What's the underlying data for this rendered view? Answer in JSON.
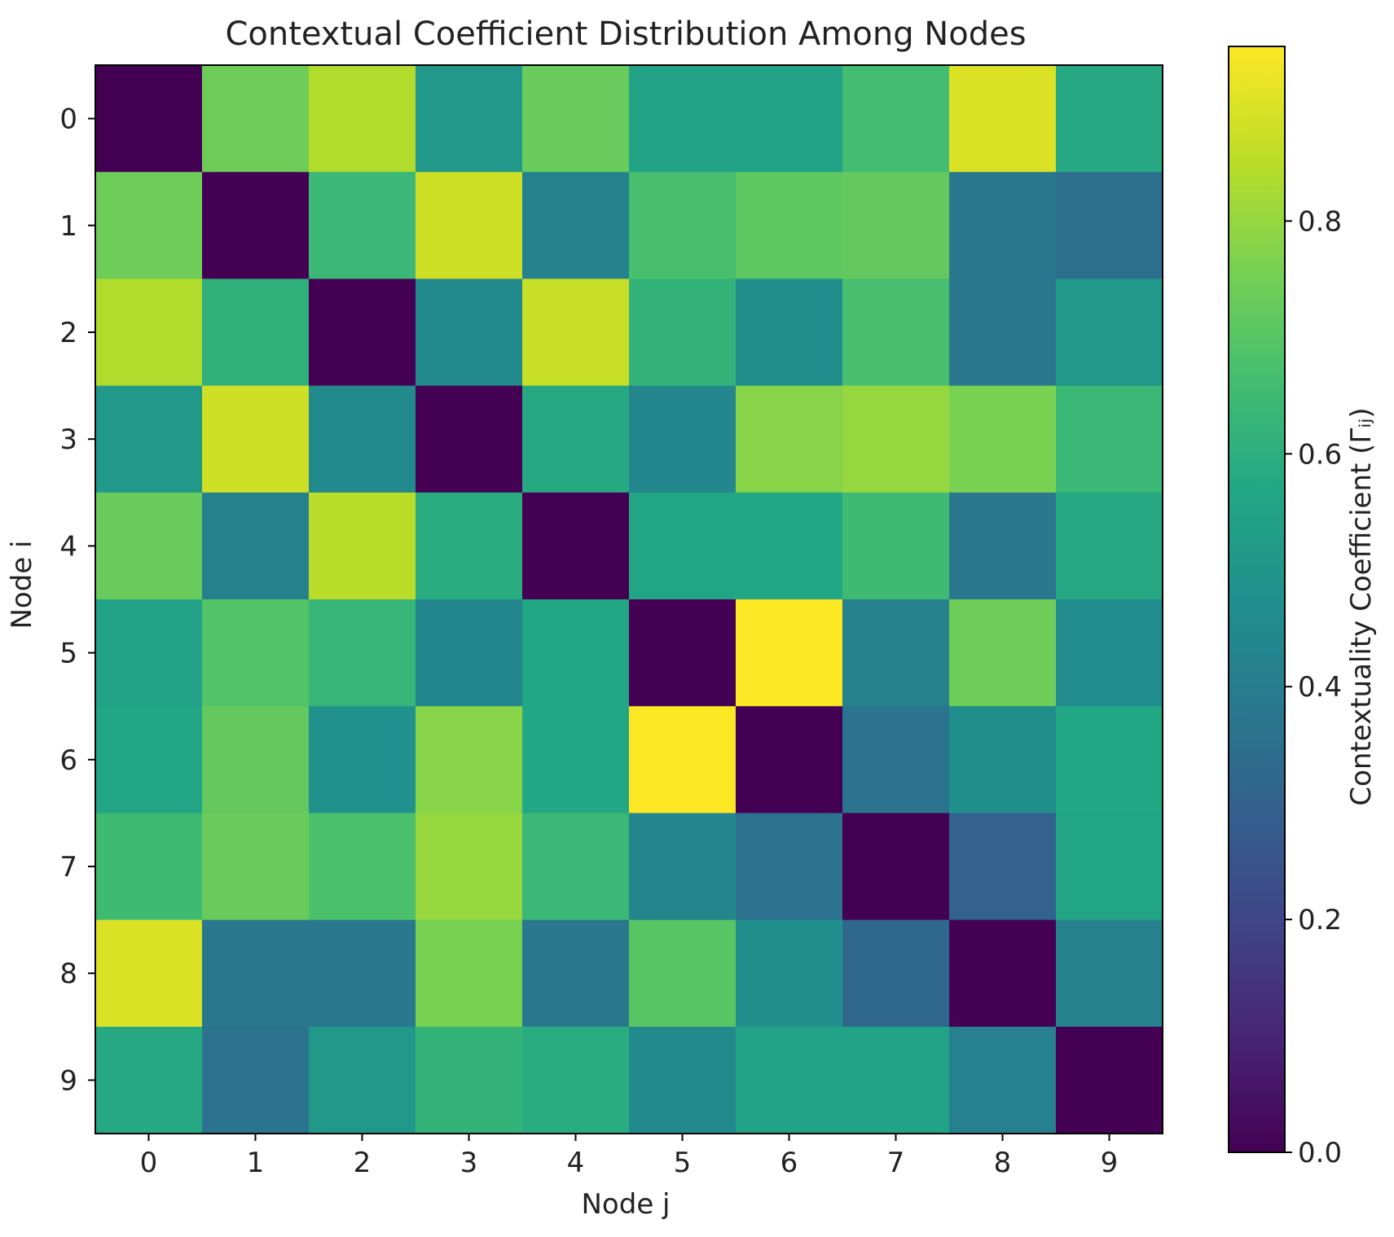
{
  "chart_data": {
    "type": "heatmap",
    "title": "Contextual Coefficient Distribution Among Nodes",
    "xlabel": "Node j",
    "ylabel": "Node i",
    "x_ticks": [
      "0",
      "1",
      "2",
      "3",
      "4",
      "5",
      "6",
      "7",
      "8",
      "9"
    ],
    "y_ticks": [
      "0",
      "1",
      "2",
      "3",
      "4",
      "5",
      "6",
      "7",
      "8",
      "9"
    ],
    "colormap": "viridis",
    "colorbar": {
      "label": "Contextuality Coefficient (Γᵢⱼ)",
      "range": [
        0.0,
        0.95
      ],
      "ticks": [
        0.0,
        0.2,
        0.4,
        0.6,
        0.8
      ],
      "tick_labels": [
        "0.0",
        "0.2",
        "0.4",
        "0.6",
        "0.8"
      ]
    },
    "values": [
      [
        0.0,
        0.74,
        0.84,
        0.51,
        0.73,
        0.55,
        0.55,
        0.66,
        0.9,
        0.58
      ],
      [
        0.74,
        0.0,
        0.64,
        0.88,
        0.42,
        0.67,
        0.71,
        0.72,
        0.38,
        0.35
      ],
      [
        0.84,
        0.61,
        0.0,
        0.45,
        0.87,
        0.62,
        0.47,
        0.67,
        0.38,
        0.51
      ],
      [
        0.51,
        0.88,
        0.45,
        0.0,
        0.58,
        0.44,
        0.78,
        0.8,
        0.76,
        0.64
      ],
      [
        0.73,
        0.42,
        0.85,
        0.59,
        0.0,
        0.56,
        0.57,
        0.65,
        0.38,
        0.58
      ],
      [
        0.55,
        0.69,
        0.63,
        0.44,
        0.57,
        0.0,
        0.95,
        0.42,
        0.74,
        0.46
      ],
      [
        0.56,
        0.72,
        0.48,
        0.78,
        0.57,
        0.95,
        0.0,
        0.36,
        0.47,
        0.57
      ],
      [
        0.65,
        0.73,
        0.68,
        0.8,
        0.64,
        0.43,
        0.36,
        0.0,
        0.3,
        0.56
      ],
      [
        0.9,
        0.38,
        0.38,
        0.76,
        0.38,
        0.7,
        0.47,
        0.32,
        0.0,
        0.42
      ],
      [
        0.58,
        0.36,
        0.51,
        0.62,
        0.59,
        0.45,
        0.55,
        0.55,
        0.41,
        0.0
      ]
    ]
  }
}
